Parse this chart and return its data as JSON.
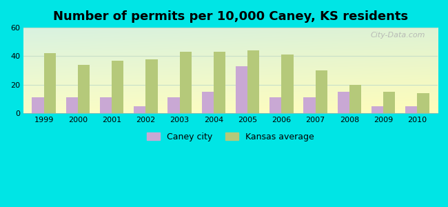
{
  "title": "Number of permits per 10,000 Caney, KS residents",
  "years": [
    1999,
    2000,
    2001,
    2002,
    2003,
    2004,
    2005,
    2006,
    2007,
    2008,
    2009,
    2010
  ],
  "caney_city": [
    11,
    11,
    11,
    5,
    11,
    15,
    33,
    11,
    11,
    15,
    5,
    5
  ],
  "kansas_avg": [
    42,
    34,
    37,
    38,
    43,
    43,
    44,
    41,
    30,
    20,
    15,
    14
  ],
  "caney_color": "#c9a8d4",
  "kansas_color": "#b5c97a",
  "background_fig": "#00e5e5",
  "ylim": [
    0,
    60
  ],
  "yticks": [
    0,
    20,
    40,
    60
  ],
  "watermark": "City-Data.com",
  "legend_caney": "Caney city",
  "legend_kansas": "Kansas average",
  "title_fontsize": 13,
  "grid_color": "#c8dfc8",
  "bar_width": 0.35
}
